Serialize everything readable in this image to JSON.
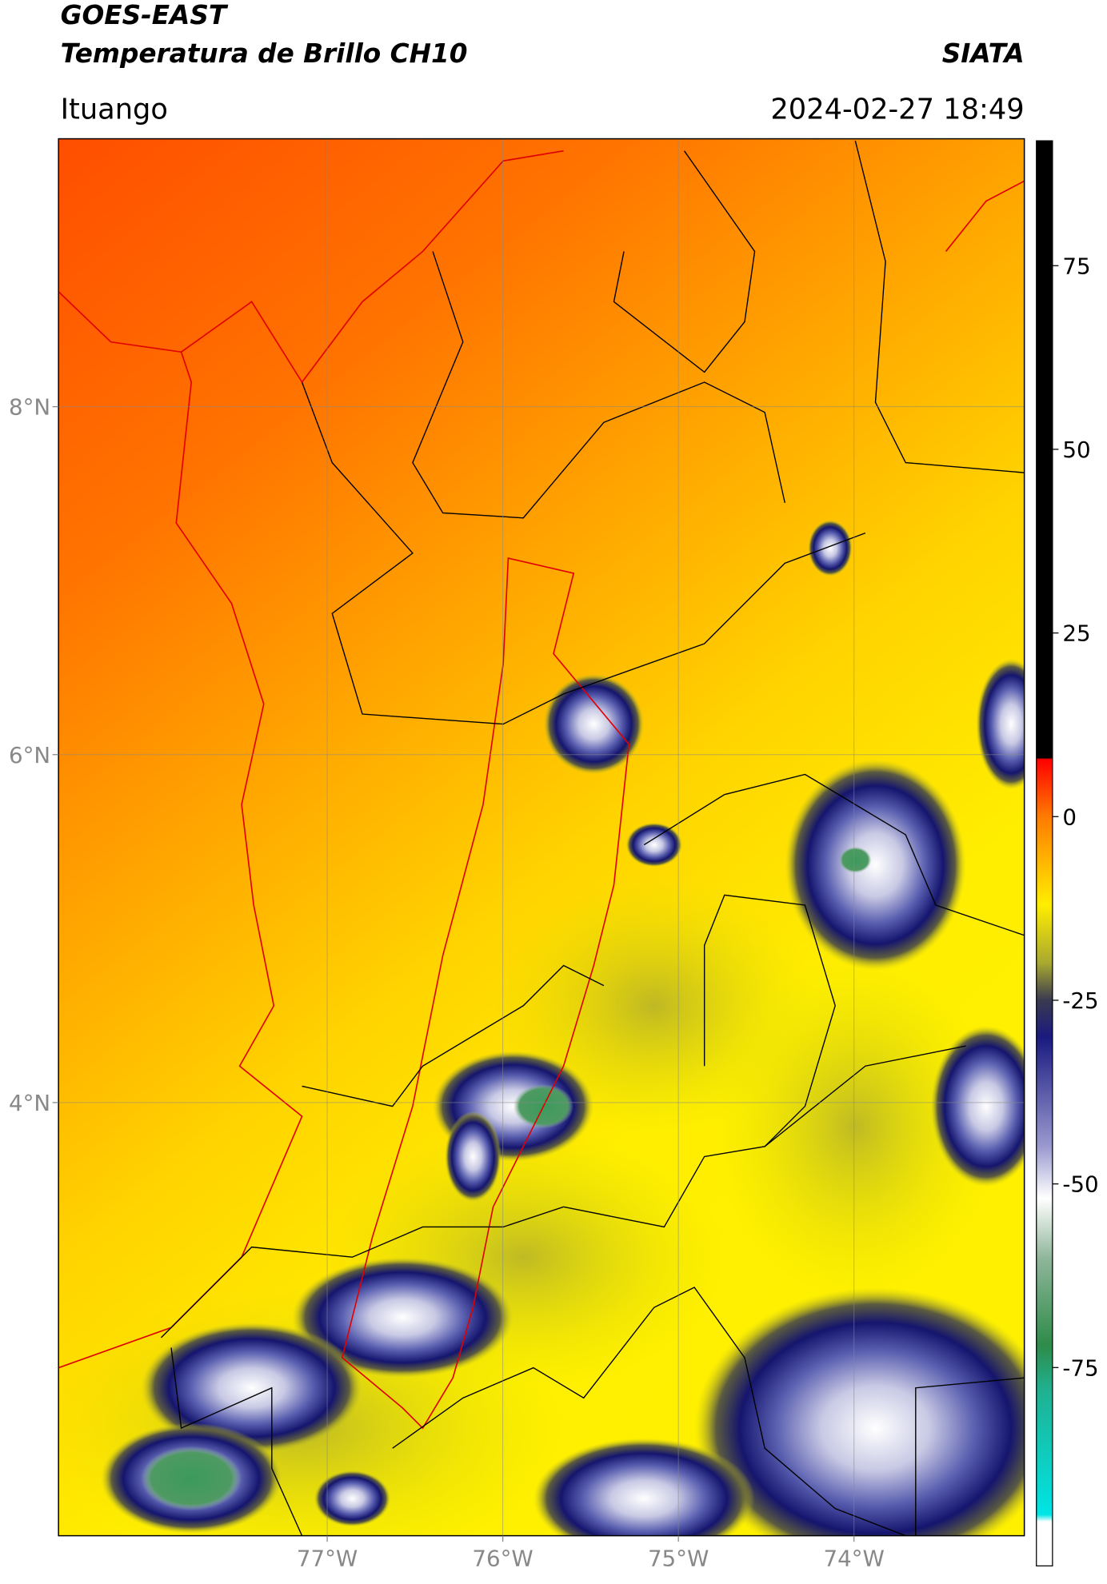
{
  "header": {
    "title": "GOES-EAST",
    "subtitle": "Temperatura de Brillo CH10",
    "source": "SIATA",
    "location": "Ituango",
    "datetime": "2024-02-27 18:49"
  },
  "map": {
    "xlim": [
      -78.53,
      -73.03
    ],
    "ylim": [
      1.51,
      9.54
    ],
    "xticks": [
      {
        "value": -77,
        "label": "77°W"
      },
      {
        "value": -76,
        "label": "76°W"
      },
      {
        "value": -75,
        "label": "75°W"
      },
      {
        "value": -74,
        "label": "74°W"
      }
    ],
    "yticks": [
      {
        "value": 4,
        "label": "4°N"
      },
      {
        "value": 6,
        "label": "6°N"
      },
      {
        "value": 8,
        "label": "8°N"
      }
    ],
    "grid": true
  },
  "colorbar": {
    "lim": [
      -102,
      92
    ],
    "ticks": [
      -75,
      -50,
      -25,
      0,
      25,
      50,
      75
    ]
  }
}
